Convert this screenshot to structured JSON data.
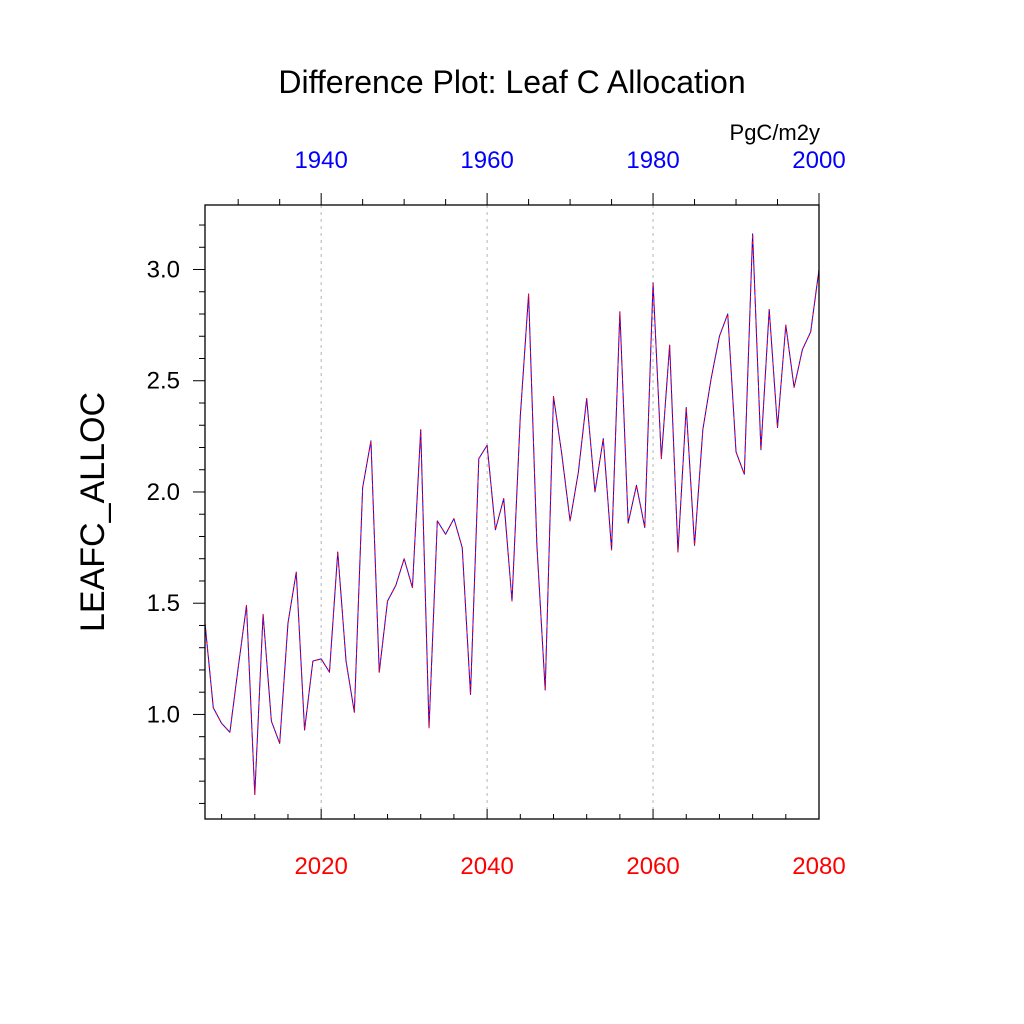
{
  "units": "PgC/m2y",
  "colors": {
    "bottom_axis": "#ff0000",
    "top_axis": "#0000ff",
    "line_primary": "#0000ff",
    "line_dash": "#ff0000",
    "frame": "#000000",
    "grid": "#b4b4b4"
  },
  "chart_data": {
    "type": "line",
    "title": "Difference Plot: Leaf C Allocation",
    "xlabel": "",
    "ylabel": "LEAFC_ALLOC",
    "units": "PgC/m2y",
    "grid": "vertical dashed at major bottom ticks",
    "xlim": [
      2006,
      2080
    ],
    "ylim": [
      0.53,
      3.29
    ],
    "bottom_axis": {
      "ticks": [
        2020,
        2040,
        2060,
        2080
      ],
      "labels": [
        "2020",
        "2040",
        "2060",
        "2080"
      ],
      "minor_step": 4
    },
    "top_axis": {
      "offset_years": -80,
      "ticks": [
        1940,
        1960,
        1980,
        2000
      ],
      "labels": [
        "1940",
        "1960",
        "1980",
        "2000"
      ],
      "minor_step": 5
    },
    "y_axis": {
      "ticks": [
        1.0,
        1.5,
        2.0,
        2.5,
        3.0
      ],
      "labels": [
        "1.0",
        "1.5",
        "2.0",
        "2.5",
        "3.0"
      ],
      "minor_step": 0.1
    },
    "x": [
      2006,
      2007,
      2008,
      2009,
      2010,
      2011,
      2012,
      2013,
      2014,
      2015,
      2016,
      2017,
      2018,
      2019,
      2020,
      2021,
      2022,
      2023,
      2024,
      2025,
      2026,
      2027,
      2028,
      2029,
      2030,
      2031,
      2032,
      2033,
      2034,
      2035,
      2036,
      2037,
      2038,
      2039,
      2040,
      2041,
      2042,
      2043,
      2044,
      2045,
      2046,
      2047,
      2048,
      2049,
      2050,
      2051,
      2052,
      2053,
      2054,
      2055,
      2056,
      2057,
      2058,
      2059,
      2060,
      2061,
      2062,
      2063,
      2064,
      2065,
      2066,
      2067,
      2068,
      2069,
      2070,
      2071,
      2072,
      2073,
      2074,
      2075,
      2076,
      2077,
      2078,
      2079,
      2080
    ],
    "series": [
      {
        "name": "LEAFC_ALLOC difference",
        "style": "solid blue line overlaid with red dashed line",
        "values": [
          1.41,
          1.03,
          0.96,
          0.92,
          1.21,
          1.49,
          0.64,
          1.45,
          0.97,
          0.87,
          1.41,
          1.64,
          0.93,
          1.24,
          1.25,
          1.19,
          1.73,
          1.24,
          1.01,
          2.02,
          2.23,
          1.19,
          1.51,
          1.58,
          1.7,
          1.57,
          2.28,
          0.94,
          1.87,
          1.81,
          1.88,
          1.75,
          1.09,
          2.15,
          2.21,
          1.83,
          1.97,
          1.51,
          2.34,
          2.89,
          1.76,
          1.11,
          2.43,
          2.17,
          1.87,
          2.09,
          2.42,
          2.0,
          2.24,
          1.74,
          2.81,
          1.86,
          2.03,
          1.84,
          2.94,
          2.15,
          2.66,
          1.73,
          2.38,
          1.76,
          2.28,
          2.51,
          2.7,
          2.8,
          2.18,
          2.08,
          3.16,
          2.19,
          2.82,
          2.29,
          2.75,
          2.47,
          2.64,
          2.72,
          3.0
        ]
      }
    ]
  }
}
